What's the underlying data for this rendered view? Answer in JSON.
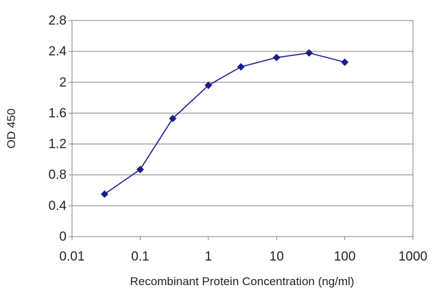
{
  "chart_data": {
    "type": "line",
    "title": "",
    "xlabel": "Recombinant Protein Concentration (ng/ml)",
    "ylabel": "OD 450",
    "xscale": "log",
    "xlim": [
      0.01,
      1000
    ],
    "ylim": [
      0,
      2.8
    ],
    "x_ticks": [
      "0.01",
      "0.1",
      "1",
      "10",
      "100",
      "1000"
    ],
    "y_ticks": [
      "0",
      "0.4",
      "0.8",
      "1.2",
      "1.6",
      "2",
      "2.4",
      "2.8"
    ],
    "grid": "horizontal",
    "legend": "none",
    "series_color": "#1c1c8c",
    "series": [
      {
        "x": [
          0.03,
          0.1,
          0.3,
          1,
          3,
          10,
          30,
          100
        ],
        "y": [
          0.55,
          0.87,
          1.53,
          1.96,
          2.2,
          2.32,
          2.38,
          2.26
        ]
      }
    ]
  }
}
